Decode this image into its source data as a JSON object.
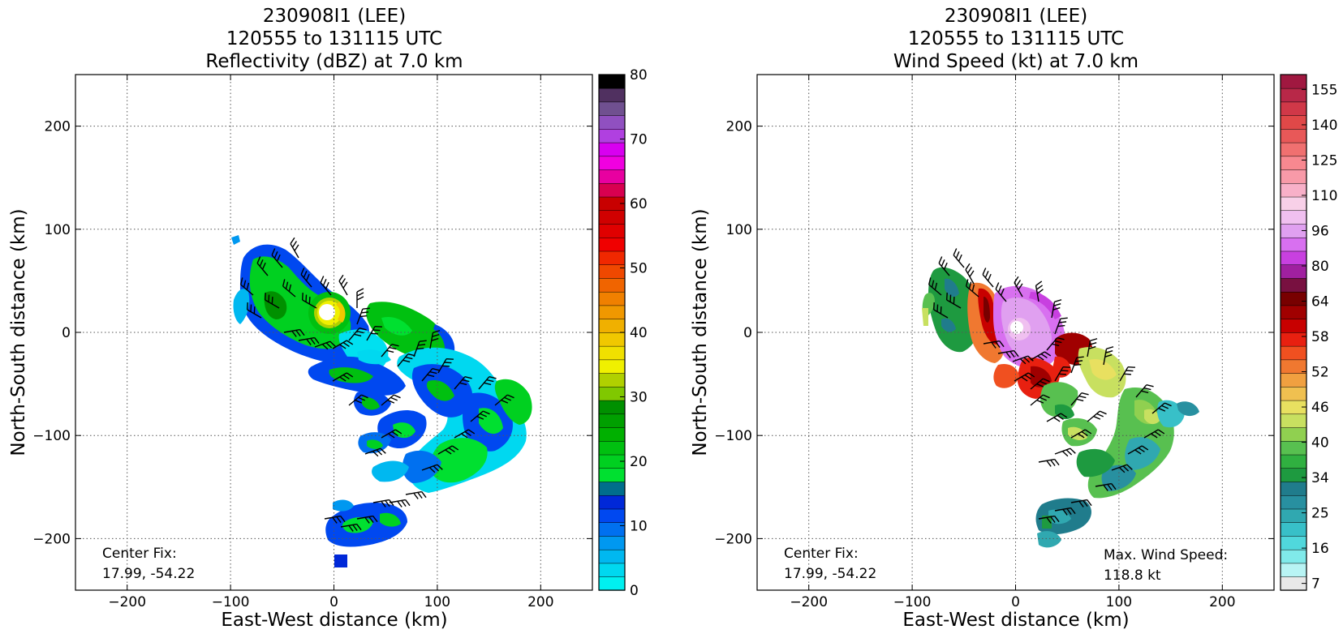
{
  "figure": {
    "background": "#ffffff"
  },
  "chart_data": [
    {
      "type": "heatmap",
      "title": [
        "230908I1 (LEE)",
        "120555 to 131115 UTC",
        "Reflectivity (dBZ) at 7.0 km"
      ],
      "xlabel": "East-West distance (km)",
      "ylabel": "North-South distance (km)",
      "xlim": [
        -250,
        250
      ],
      "ylim": [
        -250,
        250
      ],
      "xticks": [
        -200,
        -100,
        0,
        100,
        200
      ],
      "yticks": [
        -200,
        -100,
        0,
        100,
        200
      ],
      "xtick_labels": [
        "−200",
        "−100",
        "0",
        "100",
        "200"
      ],
      "ytick_labels": [
        "−200",
        "−100",
        "0",
        "100",
        "200"
      ],
      "grid": true,
      "colorbar": {
        "ticks": [
          "0",
          "10",
          "20",
          "30",
          "40",
          "50",
          "60",
          "70",
          "80"
        ],
        "range": [
          0,
          80
        ],
        "colors": [
          "#00f0f0",
          "#00d8f0",
          "#00b8f0",
          "#0098f0",
          "#0070f0",
          "#0048f0",
          "#0028d8",
          "#006e8c",
          "#00e030",
          "#00d020",
          "#00c010",
          "#00b000",
          "#00a000",
          "#009000",
          "#80c800",
          "#b0d000",
          "#f0f000",
          "#f0e000",
          "#f0c800",
          "#f0b000",
          "#f09800",
          "#f08000",
          "#f06400",
          "#f04800",
          "#f02800",
          "#f00000",
          "#e00000",
          "#d00000",
          "#c80000",
          "#d80050",
          "#e800a0",
          "#f000e0",
          "#d800f0",
          "#b040e0",
          "#9050c0",
          "#705090",
          "#503060",
          "#000000"
        ]
      },
      "annotations": [
        {
          "lines": [
            "Center Fix:",
            "17.99, -54.22"
          ],
          "position": "bottom-left"
        }
      ]
    },
    {
      "type": "heatmap",
      "title": [
        "230908I1 (LEE)",
        "120555 to 131115 UTC",
        "Wind Speed (kt) at 7.0 km"
      ],
      "xlabel": "East-West distance (km)",
      "ylabel": "North-South distance (km)",
      "xlim": [
        -250,
        250
      ],
      "ylim": [
        -250,
        250
      ],
      "xticks": [
        -200,
        -100,
        0,
        100,
        200
      ],
      "yticks": [
        -200,
        -100,
        0,
        100,
        200
      ],
      "xtick_labels": [
        "−200",
        "−100",
        "0",
        "100",
        "200"
      ],
      "ytick_labels": [
        "−200",
        "−100",
        "0",
        "100",
        "200"
      ],
      "grid": true,
      "colorbar": {
        "ticks": [
          "7",
          "16",
          "25",
          "34",
          "40",
          "46",
          "52",
          "58",
          "64",
          "80",
          "96",
          "110",
          "125",
          "140",
          "155"
        ],
        "colors": [
          "#e8e8e8",
          "#b8f4f4",
          "#80eaea",
          "#50d8dc",
          "#38c0c8",
          "#30a8b0",
          "#2890a0",
          "#207c8c",
          "#1e9a40",
          "#30b040",
          "#58c050",
          "#90d050",
          "#c8e060",
          "#e8e060",
          "#f0c050",
          "#f0a040",
          "#f07830",
          "#f05020",
          "#e82010",
          "#c80000",
          "#a00000",
          "#780000",
          "#781040",
          "#a020a0",
          "#c840e0",
          "#d870f0",
          "#e0a0f0",
          "#f0c0f0",
          "#f8d0e8",
          "#f8b0c8",
          "#f89aa8",
          "#f88890",
          "#f07070",
          "#e85858",
          "#e04848",
          "#d03848",
          "#b82848",
          "#a01840"
        ]
      },
      "annotations": [
        {
          "lines": [
            "Center Fix:",
            "17.99, -54.22"
          ],
          "position": "bottom-left"
        },
        {
          "lines": [
            "Max. Wind Speed:",
            "118.8 kt"
          ],
          "position": "bottom-right"
        }
      ]
    }
  ]
}
